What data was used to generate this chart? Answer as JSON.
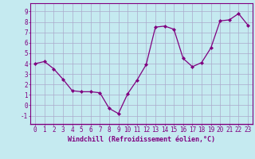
{
  "x": [
    0,
    1,
    2,
    3,
    4,
    5,
    6,
    7,
    8,
    9,
    10,
    11,
    12,
    13,
    14,
    15,
    16,
    17,
    18,
    19,
    20,
    21,
    22,
    23
  ],
  "y": [
    4.0,
    4.2,
    3.5,
    2.5,
    1.4,
    1.3,
    1.3,
    1.2,
    -0.3,
    -0.8,
    1.1,
    2.4,
    3.9,
    7.5,
    7.6,
    7.3,
    4.5,
    3.7,
    4.1,
    5.5,
    8.1,
    8.2,
    8.8,
    7.7
  ],
  "line_color": "#800080",
  "marker": "D",
  "marker_size": 2.0,
  "bg_color": "#c5eaf0",
  "grid_color": "#aaaacc",
  "xlabel": "Windchill (Refroidissement éolien,°C)",
  "ylabel_ticks": [
    -1,
    0,
    1,
    2,
    3,
    4,
    5,
    6,
    7,
    8,
    9
  ],
  "xtick_labels": [
    "0",
    "1",
    "2",
    "3",
    "4",
    "5",
    "6",
    "7",
    "8",
    "9",
    "10",
    "11",
    "12",
    "13",
    "14",
    "15",
    "16",
    "17",
    "18",
    "19",
    "20",
    "21",
    "22",
    "23"
  ],
  "xlim": [
    -0.5,
    23.5
  ],
  "ylim": [
    -1.8,
    9.8
  ],
  "xlabel_fontsize": 6.0,
  "tick_fontsize": 5.5,
  "axis_label_color": "#800080",
  "tick_color": "#800080",
  "spine_color": "#800080",
  "line_width": 0.9
}
